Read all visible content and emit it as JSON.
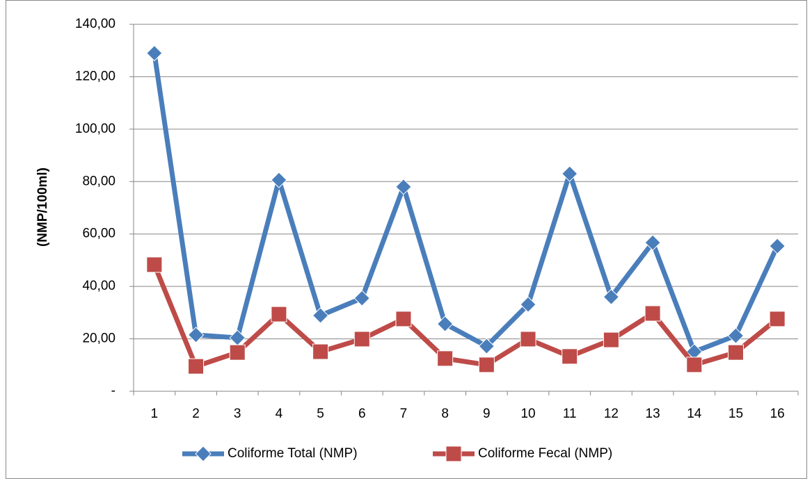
{
  "chart_data": {
    "type": "line",
    "y_label": "(NMP/100ml)",
    "categories": [
      "1",
      "2",
      "3",
      "4",
      "5",
      "6",
      "7",
      "8",
      "9",
      "10",
      "11",
      "12",
      "13",
      "14",
      "15",
      "16"
    ],
    "series": [
      {
        "name": "Coliforme Total (NMP)",
        "color": "#4a7ebb",
        "marker": "diamond",
        "values": [
          129,
          21.5,
          20.4,
          80.6,
          28.9,
          35.5,
          78,
          25.7,
          17.2,
          33.1,
          83,
          36,
          56.7,
          15.1,
          21.2,
          55.4
        ]
      },
      {
        "name": "Coliforme Fecal (NMP)",
        "color": "#be4b48",
        "marker": "square",
        "values": [
          48.3,
          9.5,
          14.8,
          29.4,
          15.1,
          19.9,
          27.6,
          12.5,
          10.1,
          19.9,
          13.3,
          19.6,
          29.7,
          10.1,
          14.8,
          27.6
        ]
      }
    ],
    "ylim": [
      0,
      140
    ],
    "yticks": [
      {
        "value": 0,
        "label": "-"
      },
      {
        "value": 20,
        "label": "20,00"
      },
      {
        "value": 40,
        "label": "40,00"
      },
      {
        "value": 60,
        "label": "60,00"
      },
      {
        "value": 80,
        "label": "80,00"
      },
      {
        "value": 100,
        "label": "100,00"
      },
      {
        "value": 120,
        "label": "120,00"
      },
      {
        "value": 140,
        "label": "140,00"
      }
    ],
    "grid": true,
    "legend": "bottom"
  }
}
